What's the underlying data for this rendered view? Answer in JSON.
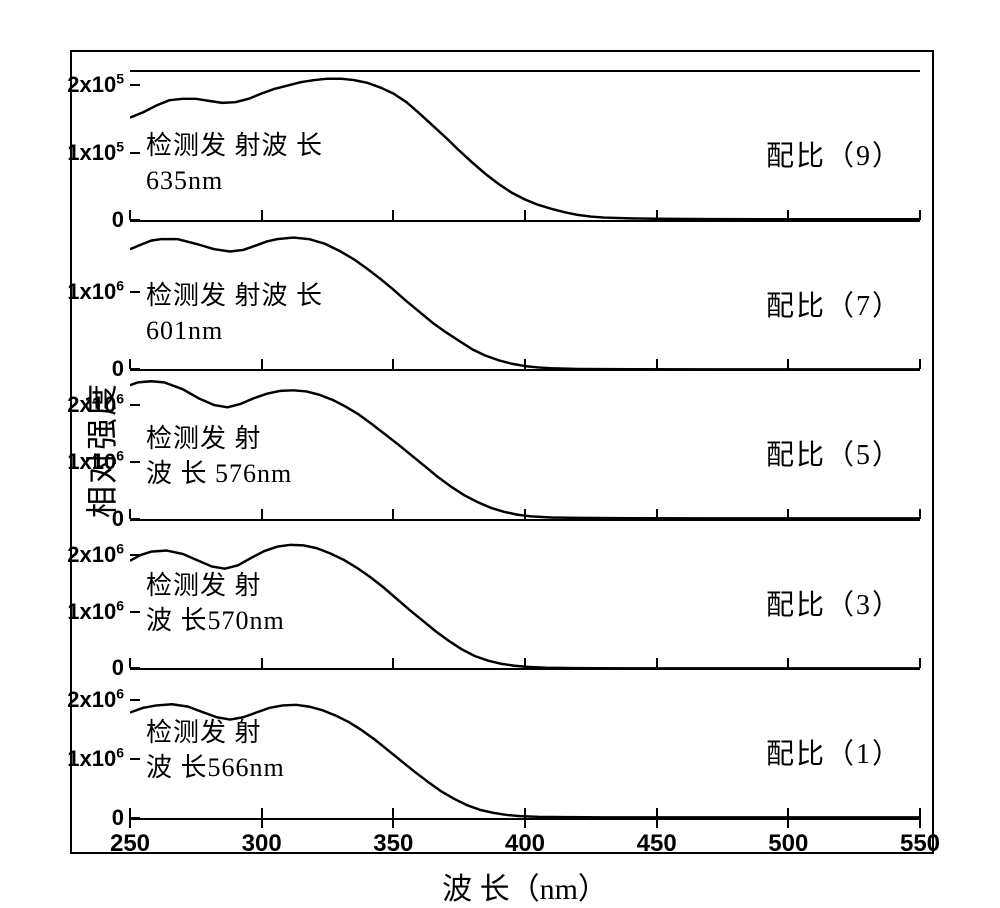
{
  "figure": {
    "background_color": "#ffffff",
    "line_color": "#000000",
    "line_width": 2.5,
    "font_family_cjk": "SimSun",
    "font_family_num": "Arial",
    "yaxis_title": "相对强度",
    "yaxis_title_fontsize": 32,
    "xaxis_title": "波 长（nm）",
    "xaxis_title_fontsize": 30,
    "ytick_fontsize": 22,
    "xtick_fontsize": 24,
    "annotation_fontsize": 26,
    "x_range": [
      250,
      550
    ],
    "x_ticks": [
      250,
      300,
      350,
      400,
      450,
      500,
      550
    ],
    "x_tick_labels": [
      "250",
      "300",
      "350",
      "400",
      "450",
      "500",
      "550"
    ],
    "panels": [
      {
        "right_label": "配比（9）",
        "left_line1": "检测发 射波 长",
        "left_line2": "635nm",
        "left_top_pct": 38,
        "ymax_mantissa": 2.2,
        "ymax_exponent": 5,
        "yticks": [
          {
            "mantissa": "0",
            "exponent": null,
            "frac": 0.0
          },
          {
            "mantissa": "1",
            "exponent": "5",
            "frac": 0.4545
          },
          {
            "mantissa": "2",
            "exponent": "5",
            "frac": 0.909
          }
        ],
        "curve": [
          [
            250,
            1.52
          ],
          [
            255,
            1.6
          ],
          [
            260,
            1.7
          ],
          [
            265,
            1.78
          ],
          [
            270,
            1.8
          ],
          [
            275,
            1.8
          ],
          [
            280,
            1.77
          ],
          [
            285,
            1.74
          ],
          [
            290,
            1.75
          ],
          [
            295,
            1.8
          ],
          [
            300,
            1.88
          ],
          [
            305,
            1.95
          ],
          [
            310,
            2.0
          ],
          [
            315,
            2.05
          ],
          [
            320,
            2.08
          ],
          [
            325,
            2.1
          ],
          [
            330,
            2.1
          ],
          [
            335,
            2.08
          ],
          [
            340,
            2.04
          ],
          [
            345,
            1.97
          ],
          [
            350,
            1.88
          ],
          [
            355,
            1.75
          ],
          [
            360,
            1.58
          ],
          [
            365,
            1.4
          ],
          [
            370,
            1.22
          ],
          [
            375,
            1.03
          ],
          [
            380,
            0.85
          ],
          [
            385,
            0.68
          ],
          [
            390,
            0.53
          ],
          [
            395,
            0.4
          ],
          [
            400,
            0.3
          ],
          [
            405,
            0.22
          ],
          [
            410,
            0.16
          ],
          [
            415,
            0.11
          ],
          [
            420,
            0.07
          ],
          [
            425,
            0.045
          ],
          [
            430,
            0.03
          ],
          [
            440,
            0.018
          ],
          [
            450,
            0.012
          ],
          [
            470,
            0.008
          ],
          [
            500,
            0.005
          ],
          [
            550,
            0.005
          ]
        ]
      },
      {
        "right_label": "配比（7）",
        "left_line1": "检测发 射波 长",
        "left_line2": "601nm",
        "left_top_pct": 38,
        "ymax_mantissa": 1.9,
        "ymax_exponent": 6,
        "yticks": [
          {
            "mantissa": "0",
            "exponent": null,
            "frac": 0.0
          },
          {
            "mantissa": "1",
            "exponent": "6",
            "frac": 0.526
          }
        ],
        "curve": [
          [
            250,
            1.55
          ],
          [
            255,
            1.62
          ],
          [
            258,
            1.66
          ],
          [
            262,
            1.68
          ],
          [
            268,
            1.68
          ],
          [
            275,
            1.62
          ],
          [
            282,
            1.55
          ],
          [
            288,
            1.52
          ],
          [
            293,
            1.54
          ],
          [
            298,
            1.6
          ],
          [
            302,
            1.65
          ],
          [
            306,
            1.68
          ],
          [
            312,
            1.7
          ],
          [
            318,
            1.68
          ],
          [
            324,
            1.62
          ],
          [
            330,
            1.52
          ],
          [
            335,
            1.42
          ],
          [
            340,
            1.3
          ],
          [
            345,
            1.17
          ],
          [
            350,
            1.03
          ],
          [
            355,
            0.88
          ],
          [
            360,
            0.74
          ],
          [
            365,
            0.6
          ],
          [
            370,
            0.48
          ],
          [
            375,
            0.37
          ],
          [
            380,
            0.26
          ],
          [
            385,
            0.18
          ],
          [
            390,
            0.12
          ],
          [
            395,
            0.075
          ],
          [
            400,
            0.045
          ],
          [
            405,
            0.028
          ],
          [
            410,
            0.017
          ],
          [
            420,
            0.008
          ],
          [
            440,
            0.004
          ],
          [
            470,
            0.003
          ],
          [
            550,
            0.003
          ]
        ]
      },
      {
        "right_label": "配比（5）",
        "left_line1": "检测发 射",
        "left_line2": "波 长 576nm",
        "left_top_pct": 34,
        "ymax_mantissa": 2.6,
        "ymax_exponent": 6,
        "yticks": [
          {
            "mantissa": "0",
            "exponent": null,
            "frac": 0.0
          },
          {
            "mantissa": "1",
            "exponent": "6",
            "frac": 0.3846
          },
          {
            "mantissa": "2",
            "exponent": "6",
            "frac": 0.7692
          }
        ],
        "curve": [
          [
            250,
            2.35
          ],
          [
            253,
            2.4
          ],
          [
            258,
            2.42
          ],
          [
            263,
            2.4
          ],
          [
            270,
            2.28
          ],
          [
            276,
            2.12
          ],
          [
            282,
            2.0
          ],
          [
            287,
            1.96
          ],
          [
            292,
            2.02
          ],
          [
            297,
            2.12
          ],
          [
            302,
            2.2
          ],
          [
            307,
            2.25
          ],
          [
            312,
            2.26
          ],
          [
            317,
            2.24
          ],
          [
            322,
            2.18
          ],
          [
            327,
            2.09
          ],
          [
            332,
            1.97
          ],
          [
            337,
            1.83
          ],
          [
            342,
            1.66
          ],
          [
            347,
            1.48
          ],
          [
            352,
            1.3
          ],
          [
            357,
            1.11
          ],
          [
            362,
            0.92
          ],
          [
            367,
            0.73
          ],
          [
            372,
            0.56
          ],
          [
            377,
            0.41
          ],
          [
            382,
            0.29
          ],
          [
            387,
            0.19
          ],
          [
            392,
            0.12
          ],
          [
            397,
            0.07
          ],
          [
            402,
            0.04
          ],
          [
            410,
            0.02
          ],
          [
            420,
            0.012
          ],
          [
            440,
            0.006
          ],
          [
            470,
            0.004
          ],
          [
            550,
            0.004
          ]
        ]
      },
      {
        "right_label": "配比（3）",
        "left_line1": "检测发 射",
        "left_line2": "波 长570nm",
        "left_top_pct": 32,
        "ymax_mantissa": 2.6,
        "ymax_exponent": 6,
        "yticks": [
          {
            "mantissa": "0",
            "exponent": null,
            "frac": 0.0
          },
          {
            "mantissa": "1",
            "exponent": "6",
            "frac": 0.3846
          },
          {
            "mantissa": "2",
            "exponent": "6",
            "frac": 0.7692
          }
        ],
        "curve": [
          [
            250,
            1.9
          ],
          [
            254,
            2.0
          ],
          [
            258,
            2.06
          ],
          [
            264,
            2.08
          ],
          [
            270,
            2.02
          ],
          [
            276,
            1.9
          ],
          [
            281,
            1.8
          ],
          [
            286,
            1.76
          ],
          [
            291,
            1.82
          ],
          [
            296,
            1.95
          ],
          [
            301,
            2.07
          ],
          [
            306,
            2.15
          ],
          [
            311,
            2.18
          ],
          [
            316,
            2.17
          ],
          [
            321,
            2.12
          ],
          [
            326,
            2.03
          ],
          [
            331,
            1.92
          ],
          [
            336,
            1.78
          ],
          [
            341,
            1.62
          ],
          [
            346,
            1.44
          ],
          [
            351,
            1.24
          ],
          [
            356,
            1.04
          ],
          [
            361,
            0.85
          ],
          [
            366,
            0.66
          ],
          [
            371,
            0.49
          ],
          [
            376,
            0.34
          ],
          [
            381,
            0.22
          ],
          [
            386,
            0.14
          ],
          [
            391,
            0.085
          ],
          [
            396,
            0.05
          ],
          [
            401,
            0.03
          ],
          [
            408,
            0.016
          ],
          [
            418,
            0.009
          ],
          [
            440,
            0.005
          ],
          [
            470,
            0.004
          ],
          [
            550,
            0.004
          ]
        ]
      },
      {
        "right_label": "配比（1）",
        "left_line1": "检测发 射",
        "left_line2": "波 长566nm",
        "left_top_pct": 30,
        "ymax_mantissa": 2.5,
        "ymax_exponent": 6,
        "yticks": [
          {
            "mantissa": "0",
            "exponent": null,
            "frac": 0.0
          },
          {
            "mantissa": "1",
            "exponent": "6",
            "frac": 0.4
          },
          {
            "mantissa": "2",
            "exponent": "6",
            "frac": 0.8
          }
        ],
        "curve": [
          [
            250,
            1.78
          ],
          [
            255,
            1.86
          ],
          [
            260,
            1.9
          ],
          [
            266,
            1.92
          ],
          [
            272,
            1.88
          ],
          [
            278,
            1.78
          ],
          [
            283,
            1.7
          ],
          [
            288,
            1.66
          ],
          [
            293,
            1.7
          ],
          [
            298,
            1.78
          ],
          [
            303,
            1.86
          ],
          [
            308,
            1.9
          ],
          [
            313,
            1.91
          ],
          [
            318,
            1.88
          ],
          [
            323,
            1.82
          ],
          [
            328,
            1.73
          ],
          [
            333,
            1.62
          ],
          [
            338,
            1.48
          ],
          [
            343,
            1.32
          ],
          [
            348,
            1.14
          ],
          [
            353,
            0.96
          ],
          [
            358,
            0.78
          ],
          [
            363,
            0.61
          ],
          [
            368,
            0.45
          ],
          [
            373,
            0.32
          ],
          [
            378,
            0.21
          ],
          [
            383,
            0.13
          ],
          [
            388,
            0.08
          ],
          [
            393,
            0.045
          ],
          [
            398,
            0.025
          ],
          [
            405,
            0.013
          ],
          [
            415,
            0.008
          ],
          [
            430,
            0.005
          ],
          [
            460,
            0.004
          ],
          [
            550,
            0.004
          ]
        ]
      }
    ]
  }
}
